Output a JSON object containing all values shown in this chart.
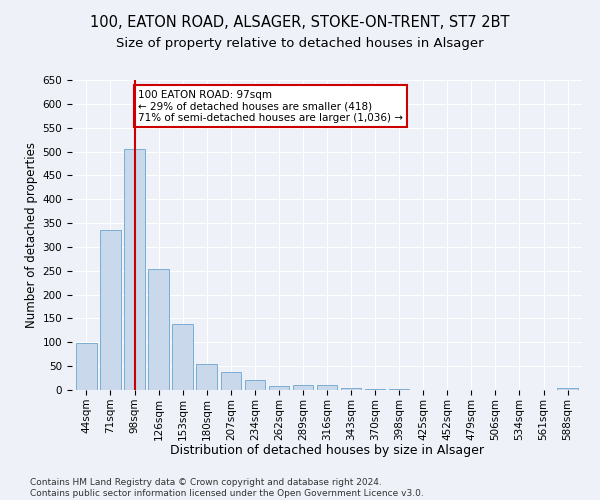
{
  "title1": "100, EATON ROAD, ALSAGER, STOKE-ON-TRENT, ST7 2BT",
  "title2": "Size of property relative to detached houses in Alsager",
  "xlabel": "Distribution of detached houses by size in Alsager",
  "ylabel": "Number of detached properties",
  "categories": [
    "44sqm",
    "71sqm",
    "98sqm",
    "126sqm",
    "153sqm",
    "180sqm",
    "207sqm",
    "234sqm",
    "262sqm",
    "289sqm",
    "316sqm",
    "343sqm",
    "370sqm",
    "398sqm",
    "425sqm",
    "452sqm",
    "479sqm",
    "506sqm",
    "534sqm",
    "561sqm",
    "588sqm"
  ],
  "values": [
    98,
    335,
    505,
    253,
    138,
    54,
    38,
    20,
    8,
    10,
    10,
    5,
    2,
    2,
    1,
    1,
    1,
    0,
    0,
    0,
    4
  ],
  "bar_color": "#c9d9eb",
  "bar_edge_color": "#7aadd4",
  "annotation_box_text": "100 EATON ROAD: 97sqm\n← 29% of detached houses are smaller (418)\n71% of semi-detached houses are larger (1,036) →",
  "annotation_box_color": "#ffffff",
  "annotation_box_edge_color": "#cc0000",
  "vline_color": "#cc0000",
  "vline_x": 2,
  "ylim": [
    0,
    650
  ],
  "yticks": [
    0,
    50,
    100,
    150,
    200,
    250,
    300,
    350,
    400,
    450,
    500,
    550,
    600,
    650
  ],
  "footnote": "Contains HM Land Registry data © Crown copyright and database right 2024.\nContains public sector information licensed under the Open Government Licence v3.0.",
  "bg_color": "#eef2f8",
  "plot_bg_color": "#eef2f8",
  "title1_fontsize": 10.5,
  "title2_fontsize": 9.5,
  "xlabel_fontsize": 9,
  "ylabel_fontsize": 8.5,
  "tick_fontsize": 7.5,
  "annotation_fontsize": 7.5,
  "footnote_fontsize": 6.5
}
